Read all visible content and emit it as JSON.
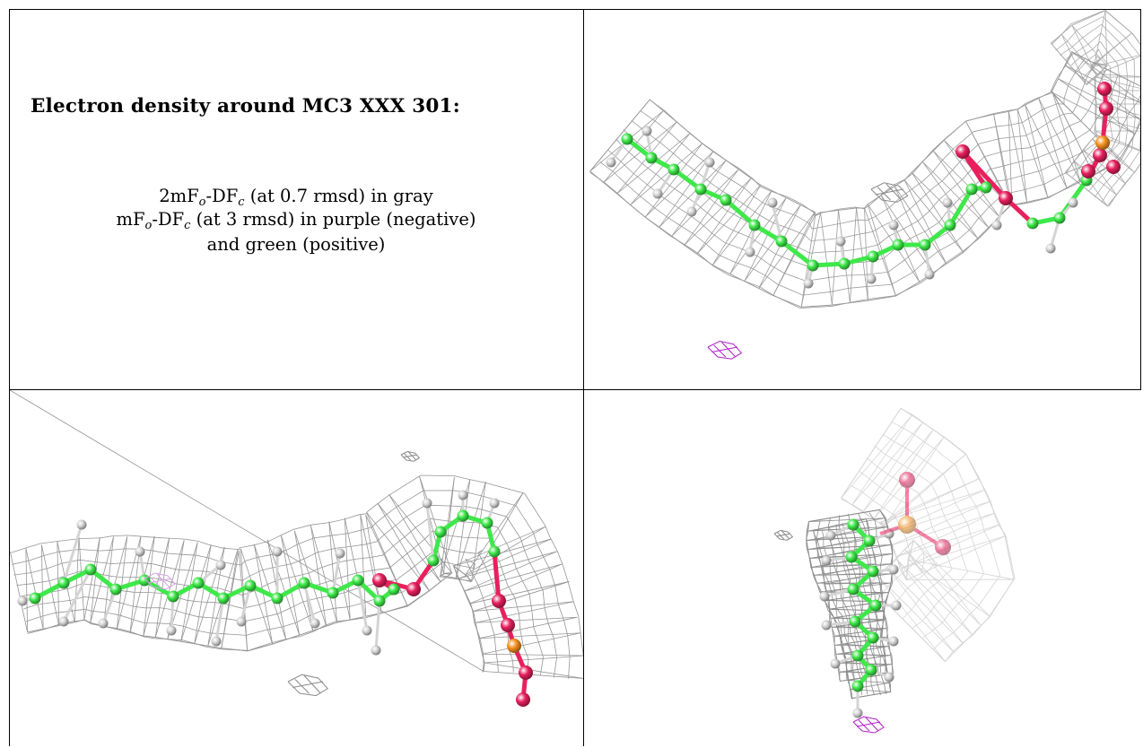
{
  "caption": {
    "title": "Electron density around MC3 XXX 301:",
    "line1_prefix": "2mF",
    "line1_sub1": "o",
    "line1_mid": "-DF",
    "line1_sub2": "c",
    "line1_suffix": " (at 0.7 rmsd) in gray",
    "line2_prefix": "mF",
    "line2_sub1": "o",
    "line2_mid": "-DF",
    "line2_sub2": "c",
    "line2_suffix": " (at 3 rmsd) in purple (negative)",
    "line3": "and green (positive)"
  },
  "views": [
    {
      "id": "view-top-right"
    },
    {
      "id": "view-bottom-left"
    },
    {
      "id": "view-bottom-right"
    }
  ],
  "colors": {
    "carbon": "#3fe84a",
    "oxygen": "#e8205e",
    "phosphorus": "#f5901e",
    "hydrogen": "#d4d4d4",
    "mesh_gray": "#8a8a8a",
    "mesh_negative": "#b020c8"
  }
}
